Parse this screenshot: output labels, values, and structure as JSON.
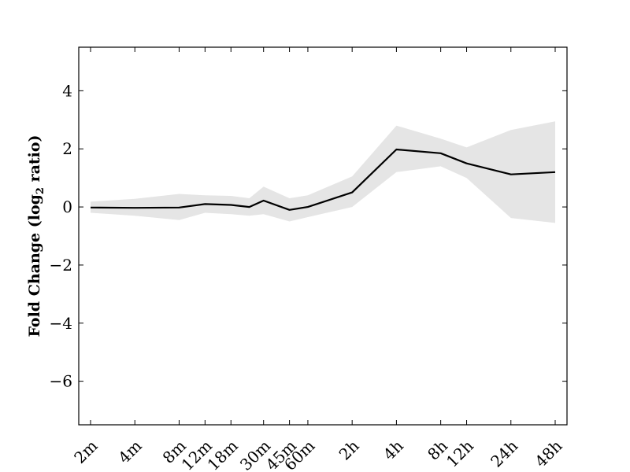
{
  "chart_data": {
    "type": "line",
    "title": "",
    "xlabel": "",
    "ylabel_main": "Fold Change (log",
    "ylabel_sub": "2",
    "ylabel_tail": " ratio)",
    "categories": [
      "2m",
      "4m",
      "8m",
      "12m",
      "18m",
      "30m",
      "45m",
      "60m",
      "2h",
      "4h",
      "8h",
      "12h",
      "24h",
      "48h"
    ],
    "x_minutes": [
      2,
      4,
      8,
      12,
      18,
      30,
      45,
      60,
      120,
      240,
      480,
      720,
      1440,
      2880
    ],
    "x_scale": "log",
    "ylim": [
      -7.5,
      5.5
    ],
    "yticks": [
      4,
      2,
      0,
      -2,
      -4,
      -6
    ],
    "ytick_labels": [
      "4",
      "2",
      "0",
      "−2",
      "−4",
      "−6"
    ],
    "grid": false,
    "series": [
      {
        "line_color": "#000000",
        "band_color": "#e5e5e5",
        "points": [
          {
            "x": 2,
            "y": -0.02,
            "lo": -0.2,
            "hi": 0.18
          },
          {
            "x": 4,
            "y": -0.03,
            "lo": -0.3,
            "hi": 0.28
          },
          {
            "x": 8,
            "y": -0.02,
            "lo": -0.45,
            "hi": 0.45
          },
          {
            "x": 12,
            "y": 0.1,
            "lo": -0.2,
            "hi": 0.4
          },
          {
            "x": 18,
            "y": 0.07,
            "lo": -0.25,
            "hi": 0.38
          },
          {
            "x": 24,
            "y": 0.0,
            "lo": -0.3,
            "hi": 0.3
          },
          {
            "x": 30,
            "y": 0.22,
            "lo": -0.25,
            "hi": 0.7
          },
          {
            "x": 45,
            "y": -0.1,
            "lo": -0.5,
            "hi": 0.3
          },
          {
            "x": 60,
            "y": 0.0,
            "lo": -0.35,
            "hi": 0.4
          },
          {
            "x": 120,
            "y": 0.5,
            "lo": 0.0,
            "hi": 1.05
          },
          {
            "x": 240,
            "y": 1.98,
            "lo": 1.2,
            "hi": 2.8
          },
          {
            "x": 480,
            "y": 1.85,
            "lo": 1.4,
            "hi": 2.35
          },
          {
            "x": 720,
            "y": 1.5,
            "lo": 1.0,
            "hi": 2.05
          },
          {
            "x": 1440,
            "y": 1.12,
            "lo": -0.38,
            "hi": 2.65
          },
          {
            "x": 2880,
            "y": 1.2,
            "lo": -0.55,
            "hi": 2.95
          }
        ]
      }
    ]
  }
}
